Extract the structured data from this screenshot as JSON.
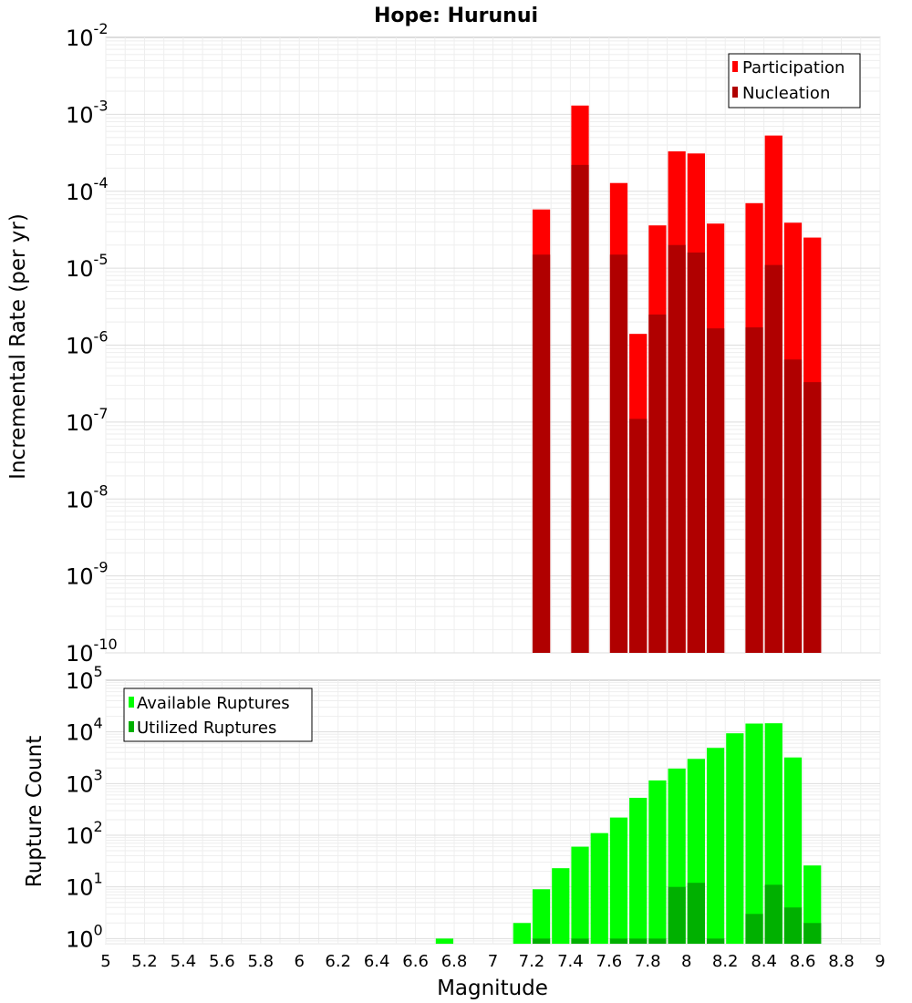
{
  "chart_data": [
    {
      "type": "bar",
      "title": "Hope: Hurunui",
      "xlabel": "",
      "ylabel": "Incremental Rate (per yr)",
      "y_scale": "log",
      "ylim_exp": [
        -10,
        -2
      ],
      "xlim": [
        5,
        9
      ],
      "bar_width": 0.1,
      "grid": true,
      "legend_position": "top-right",
      "series": [
        {
          "name": "Participation",
          "color": "#ff0000",
          "x": [
            7.25,
            7.45,
            7.65,
            7.75,
            7.85,
            7.95,
            8.05,
            8.15,
            8.35,
            8.45,
            8.55,
            8.65
          ],
          "values": [
            5.8e-05,
            0.0013,
            0.000128,
            1.4e-06,
            3.6e-05,
            0.00033,
            0.00031,
            3.8e-05,
            7e-05,
            0.00053,
            3.9e-05,
            2.5e-05
          ]
        },
        {
          "name": "Nucleation",
          "color": "#b00000",
          "x": [
            7.25,
            7.45,
            7.65,
            7.75,
            7.85,
            7.95,
            8.05,
            8.15,
            8.35,
            8.45,
            8.55,
            8.65
          ],
          "values": [
            1.5e-05,
            0.00022,
            1.5e-05,
            1.1e-07,
            2.5e-06,
            2e-05,
            1.6e-05,
            1.65e-06,
            1.7e-06,
            1.1e-05,
            6.5e-07,
            3.3e-07
          ]
        }
      ]
    },
    {
      "type": "bar",
      "title": "",
      "xlabel": "Magnitude",
      "ylabel": "Rupture Count",
      "y_scale": "log",
      "ylim_exp": [
        -0.1,
        5
      ],
      "xlim": [
        5,
        9
      ],
      "bar_width": 0.1,
      "grid": true,
      "legend_position": "top-left",
      "x_ticks": [
        "5",
        "5.2",
        "5.4",
        "5.6",
        "5.8",
        "6",
        "6.2",
        "6.4",
        "6.6",
        "6.8",
        "7",
        "7.2",
        "7.4",
        "7.6",
        "7.8",
        "8",
        "8.2",
        "8.4",
        "8.6",
        "8.8",
        "9"
      ],
      "series": [
        {
          "name": "Available Ruptures",
          "color": "#00ff00",
          "x": [
            6.75,
            7.15,
            7.25,
            7.35,
            7.45,
            7.55,
            7.65,
            7.75,
            7.85,
            7.95,
            8.05,
            8.15,
            8.25,
            8.35,
            8.45,
            8.55,
            8.65
          ],
          "values": [
            1,
            2,
            9,
            23,
            60,
            110,
            220,
            530,
            1150,
            1950,
            3000,
            4900,
            9400,
            14500,
            14700,
            3200,
            26
          ]
        },
        {
          "name": "Utilized Ruptures",
          "color": "#00b000",
          "x": [
            7.25,
            7.45,
            7.65,
            7.75,
            7.85,
            7.95,
            8.05,
            8.15,
            8.35,
            8.45,
            8.55,
            8.65
          ],
          "values": [
            1,
            1,
            1,
            1,
            1,
            10,
            12,
            1,
            3,
            11,
            4,
            2
          ]
        }
      ]
    }
  ]
}
